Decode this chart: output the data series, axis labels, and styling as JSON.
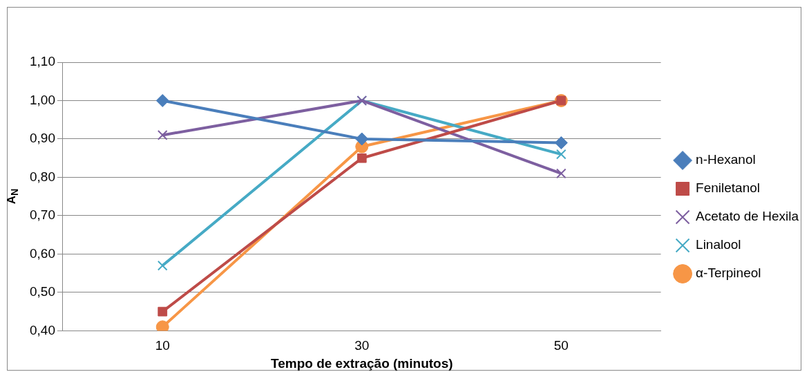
{
  "chart_data": {
    "type": "line",
    "xlabel": "Tempo de extração (minutos)",
    "ylabel": "A$_{N}$",
    "categories": [
      "10",
      "30",
      "50"
    ],
    "ylim": [
      0.4,
      1.1
    ],
    "yticks": [
      {
        "value": 0.4,
        "label": "0,40"
      },
      {
        "value": 0.5,
        "label": "0,50"
      },
      {
        "value": 0.6,
        "label": "0,60"
      },
      {
        "value": 0.7,
        "label": "0,70"
      },
      {
        "value": 0.8,
        "label": "0,80"
      },
      {
        "value": 0.9,
        "label": "0,90"
      },
      {
        "value": 1.0,
        "label": "1,00"
      },
      {
        "value": 1.1,
        "label": "1,10"
      }
    ],
    "grid": "y",
    "legend": "right",
    "line_style": "solid",
    "series": [
      {
        "name": "n-Hexanol",
        "color": "#4a7ebb",
        "marker": "diamond",
        "values": [
          1.0,
          0.9,
          0.89
        ]
      },
      {
        "name": "Feniletanol",
        "color": "#be4b48",
        "marker": "square",
        "values": [
          0.45,
          0.85,
          1.0
        ]
      },
      {
        "name": "Acetato de Hexila",
        "color": "#7d5fa0",
        "marker": "cross",
        "values": [
          0.91,
          1.0,
          0.81
        ]
      },
      {
        "name": "Linalool",
        "color": "#46aac5",
        "marker": "cross",
        "values": [
          0.57,
          1.0,
          0.86
        ]
      },
      {
        "name": "α-Terpineol",
        "color": "#f79646",
        "marker": "circle",
        "values": [
          0.41,
          0.88,
          1.0
        ]
      }
    ]
  }
}
